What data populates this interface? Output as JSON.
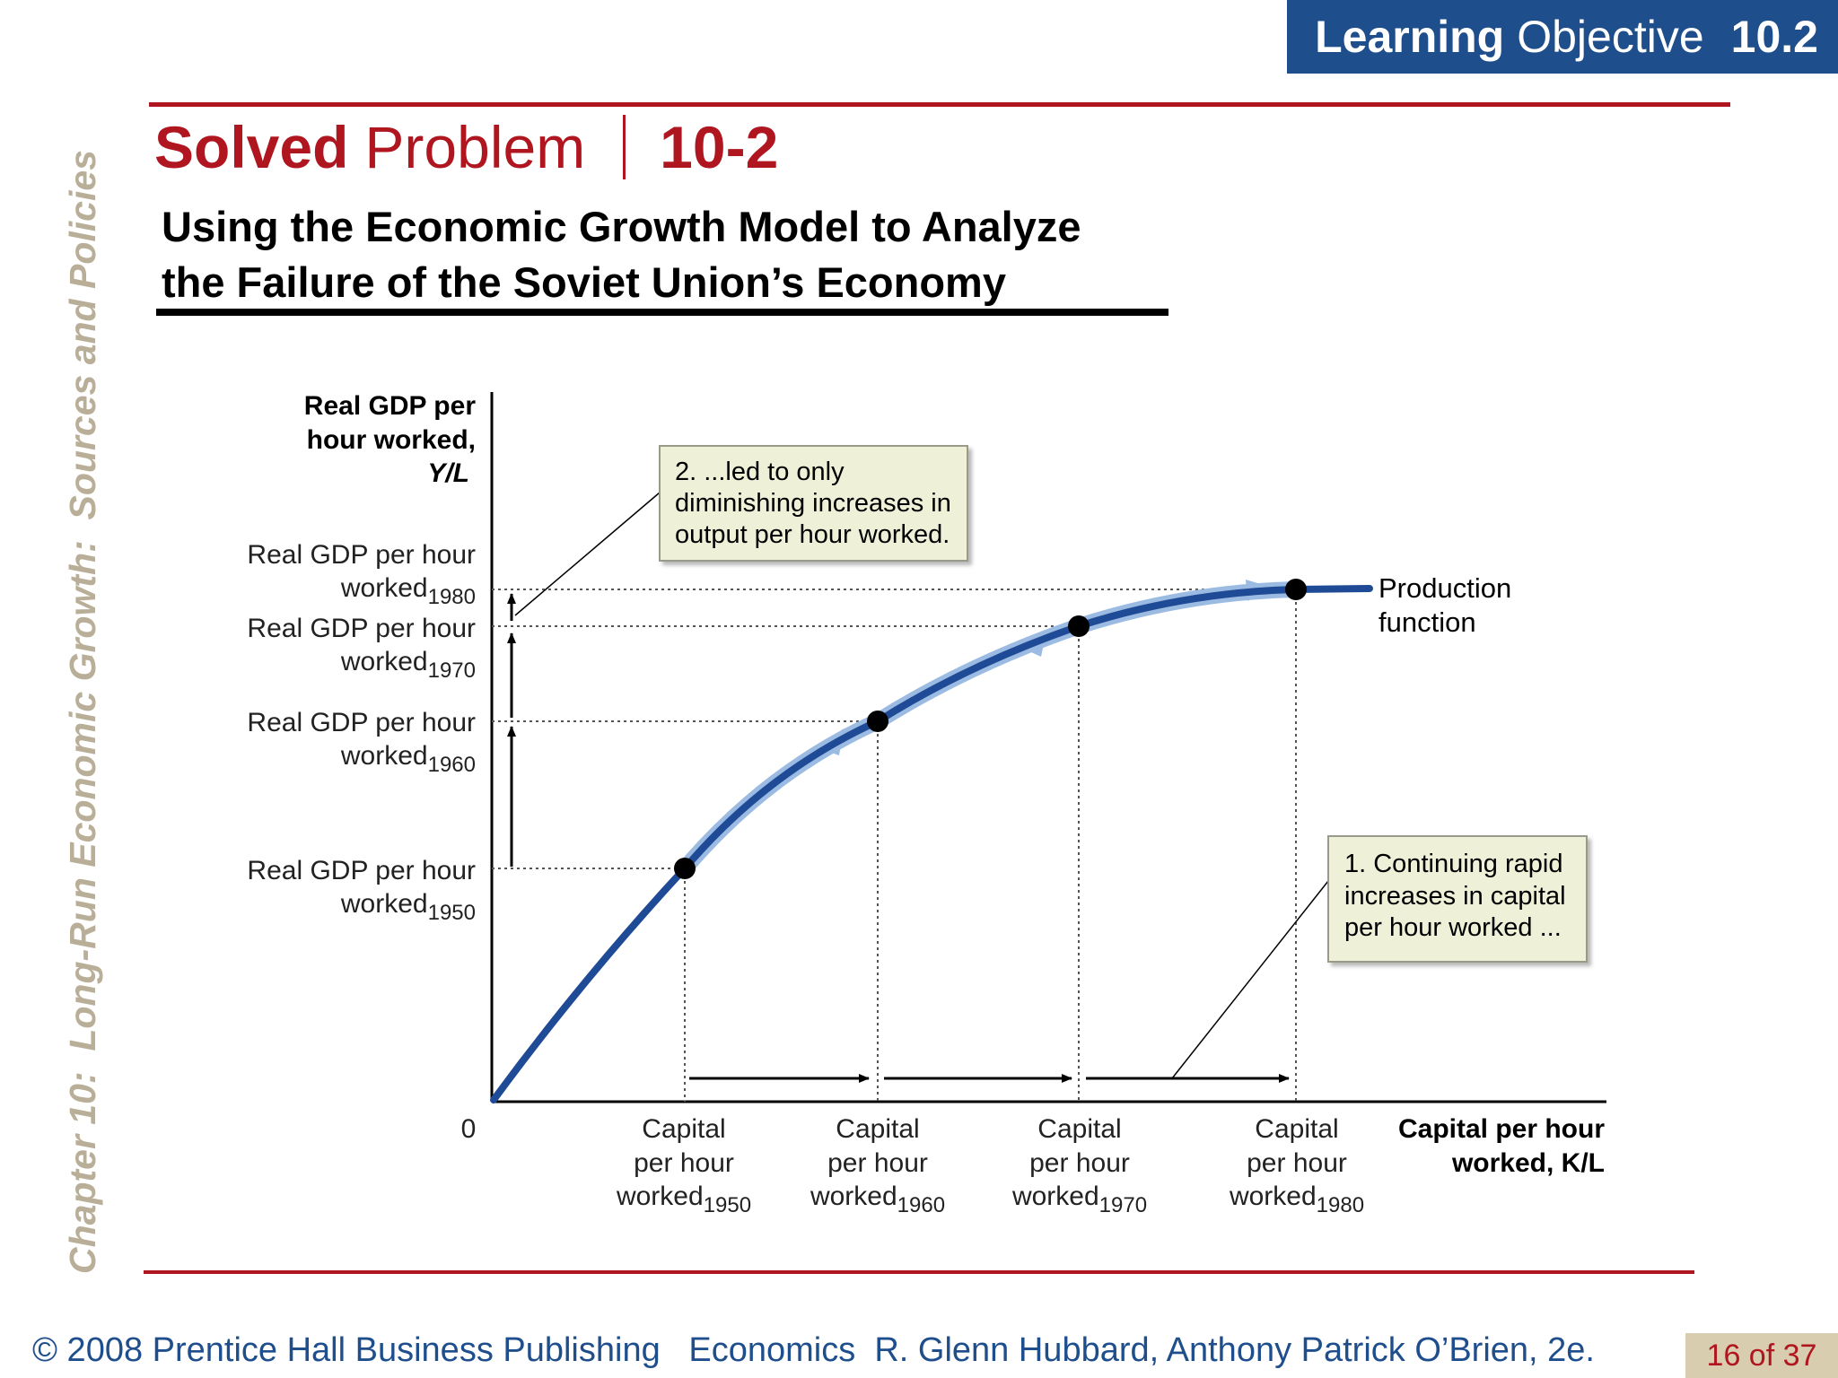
{
  "header": {
    "learning_bold": "Learning",
    "learning_rest": "Objective",
    "learning_num": "10.2"
  },
  "title": {
    "bold": "Solved",
    "rest": "Problem",
    "number": "10-2"
  },
  "subtitle": {
    "line1": "Using the Economic Growth Model to Analyze",
    "line2": "the Failure of the Soviet Union’s Economy"
  },
  "side_label": "Chapter 10:  Long-Run Economic Growth:  Sources and Policies",
  "chart_data": {
    "type": "line",
    "y_axis_title": [
      "Real GDP per",
      "hour worked,",
      "Y/L"
    ],
    "x_axis_title": [
      "Capital per hour",
      "worked, K/L"
    ],
    "origin_label": "0",
    "curve_label": [
      "Production",
      "function"
    ],
    "y_ticks": [
      {
        "line1": "Real GDP per hour",
        "line2": "worked",
        "sub": "1980"
      },
      {
        "line1": "Real GDP per hour",
        "line2": "worked",
        "sub": "1970"
      },
      {
        "line1": "Real GDP per hour",
        "line2": "worked",
        "sub": "1960"
      },
      {
        "line1": "Real GDP per hour",
        "line2": "worked",
        "sub": "1950"
      }
    ],
    "x_ticks": [
      {
        "line1": "Capital",
        "line2": "per hour",
        "line3": "worked",
        "sub": "1950"
      },
      {
        "line1": "Capital",
        "line2": "per hour",
        "line3": "worked",
        "sub": "1960"
      },
      {
        "line1": "Capital",
        "line2": "per hour",
        "line3": "worked",
        "sub": "1970"
      },
      {
        "line1": "Capital",
        "line2": "per hour",
        "line3": "worked",
        "sub": "1980"
      }
    ],
    "points": [
      {
        "year": "1950",
        "x": 1,
        "y": 1
      },
      {
        "year": "1960",
        "x": 2,
        "y": 2
      },
      {
        "year": "1970",
        "x": 3,
        "y": 3
      },
      {
        "year": "1980",
        "x": 4,
        "y": 4
      }
    ],
    "annotation_top": [
      "2.  ...led to only",
      "diminishing increases in",
      "output per hour worked."
    ],
    "annotation_bottom": [
      "1. Continuing rapid",
      "increases in capital",
      "per hour worked ..."
    ],
    "colors": {
      "curve": "#1f4b96",
      "curve_glow": "#9bbbe3",
      "box_fill": "#eef1d8"
    }
  },
  "footer": {
    "text": "© 2008 Prentice Hall Business Publishing   Economics  R. Glenn Hubbard, Anthony Patrick O’Brien, 2e.",
    "page": "16 of 37"
  }
}
